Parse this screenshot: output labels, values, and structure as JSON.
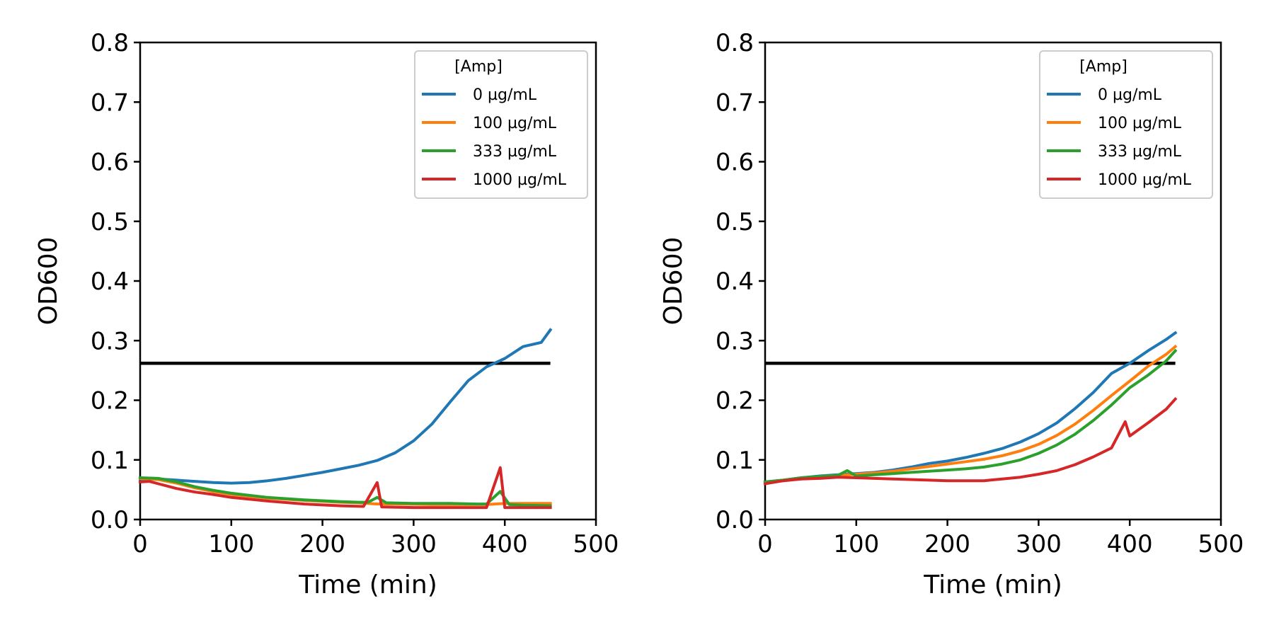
{
  "chart_data": [
    {
      "type": "line",
      "xlabel": "Time (min)",
      "ylabel": "OD600",
      "xlim": [
        0,
        500
      ],
      "ylim": [
        0,
        0.8
      ],
      "xticks": [
        "0",
        "100",
        "200",
        "300",
        "400",
        "500"
      ],
      "yticks": [
        "0.0",
        "0.1",
        "0.2",
        "0.3",
        "0.4",
        "0.5",
        "0.6",
        "0.7",
        "0.8"
      ],
      "grid": false,
      "legend_position": "top-right",
      "legend_title": "[Amp]",
      "threshold": {
        "y": 0.262,
        "x_start": 0,
        "x_end": 450,
        "color": "#000000"
      },
      "series": [
        {
          "name": "0 µg/mL",
          "color": "#1f77b4",
          "x": [
            0,
            20,
            40,
            60,
            80,
            100,
            120,
            140,
            160,
            180,
            200,
            220,
            240,
            260,
            280,
            300,
            320,
            340,
            360,
            380,
            400,
            420,
            440,
            450
          ],
          "y": [
            0.068,
            0.068,
            0.066,
            0.064,
            0.062,
            0.061,
            0.062,
            0.065,
            0.069,
            0.074,
            0.079,
            0.085,
            0.091,
            0.099,
            0.112,
            0.132,
            0.16,
            0.197,
            0.233,
            0.256,
            0.27,
            0.29,
            0.297,
            0.318
          ]
        },
        {
          "name": "100 µg/mL",
          "color": "#ff7f0e",
          "x": [
            0,
            20,
            40,
            60,
            80,
            100,
            140,
            180,
            220,
            240,
            260,
            280,
            320,
            360,
            380,
            400,
            420,
            450
          ],
          "y": [
            0.069,
            0.067,
            0.061,
            0.053,
            0.047,
            0.042,
            0.036,
            0.032,
            0.029,
            0.028,
            0.026,
            0.026,
            0.025,
            0.025,
            0.025,
            0.027,
            0.027,
            0.027
          ]
        },
        {
          "name": "333 µg/mL",
          "color": "#2ca02c",
          "x": [
            0,
            20,
            40,
            60,
            80,
            100,
            140,
            180,
            220,
            240,
            250,
            260,
            270,
            300,
            340,
            370,
            380,
            395,
            405,
            420,
            450
          ],
          "y": [
            0.07,
            0.069,
            0.063,
            0.055,
            0.049,
            0.044,
            0.037,
            0.033,
            0.03,
            0.029,
            0.029,
            0.037,
            0.028,
            0.027,
            0.027,
            0.026,
            0.026,
            0.047,
            0.025,
            0.024,
            0.023
          ]
        },
        {
          "name": "1000 µg/mL",
          "color": "#d62728",
          "x": [
            0,
            10,
            20,
            40,
            60,
            80,
            100,
            140,
            180,
            220,
            245,
            260,
            265,
            300,
            340,
            380,
            395,
            400,
            420,
            450
          ],
          "y": [
            0.063,
            0.064,
            0.06,
            0.052,
            0.046,
            0.042,
            0.037,
            0.031,
            0.026,
            0.023,
            0.022,
            0.062,
            0.021,
            0.02,
            0.02,
            0.02,
            0.087,
            0.02,
            0.02,
            0.02
          ]
        }
      ]
    },
    {
      "type": "line",
      "xlabel": "Time (min)",
      "ylabel": "OD600",
      "xlim": [
        0,
        500
      ],
      "ylim": [
        0,
        0.8
      ],
      "xticks": [
        "0",
        "100",
        "200",
        "300",
        "400",
        "500"
      ],
      "yticks": [
        "0.0",
        "0.1",
        "0.2",
        "0.3",
        "0.4",
        "0.5",
        "0.6",
        "0.7",
        "0.8"
      ],
      "grid": false,
      "legend_position": "top-right",
      "legend_title": "[Amp]",
      "threshold": {
        "y": 0.262,
        "x_start": 0,
        "x_end": 450,
        "color": "#000000"
      },
      "series": [
        {
          "name": "0 µg/mL",
          "color": "#1f77b4",
          "x": [
            0,
            20,
            40,
            60,
            80,
            100,
            120,
            140,
            160,
            180,
            200,
            220,
            240,
            260,
            280,
            300,
            320,
            340,
            360,
            380,
            400,
            420,
            440,
            450
          ],
          "y": [
            0.063,
            0.066,
            0.07,
            0.073,
            0.075,
            0.077,
            0.079,
            0.083,
            0.088,
            0.094,
            0.098,
            0.104,
            0.111,
            0.119,
            0.13,
            0.144,
            0.162,
            0.186,
            0.213,
            0.245,
            0.262,
            0.283,
            0.302,
            0.313
          ]
        },
        {
          "name": "100 µg/mL",
          "color": "#ff7f0e",
          "x": [
            0,
            20,
            40,
            60,
            80,
            100,
            120,
            140,
            160,
            180,
            200,
            220,
            240,
            260,
            280,
            300,
            320,
            340,
            360,
            380,
            400,
            420,
            440,
            450
          ],
          "y": [
            0.062,
            0.065,
            0.069,
            0.072,
            0.074,
            0.076,
            0.078,
            0.081,
            0.085,
            0.089,
            0.093,
            0.097,
            0.101,
            0.107,
            0.115,
            0.126,
            0.141,
            0.16,
            0.183,
            0.208,
            0.232,
            0.257,
            0.277,
            0.29
          ]
        },
        {
          "name": "333 µg/mL",
          "color": "#2ca02c",
          "x": [
            0,
            20,
            40,
            60,
            80,
            90,
            100,
            120,
            140,
            160,
            180,
            200,
            220,
            240,
            260,
            280,
            300,
            320,
            340,
            360,
            380,
            400,
            420,
            440,
            450
          ],
          "y": [
            0.063,
            0.066,
            0.07,
            0.072,
            0.074,
            0.082,
            0.073,
            0.075,
            0.077,
            0.079,
            0.081,
            0.083,
            0.085,
            0.088,
            0.093,
            0.1,
            0.111,
            0.125,
            0.143,
            0.166,
            0.192,
            0.221,
            0.242,
            0.266,
            0.283
          ]
        },
        {
          "name": "1000 µg/mL",
          "color": "#d62728",
          "x": [
            0,
            20,
            40,
            60,
            80,
            100,
            140,
            180,
            200,
            240,
            260,
            280,
            300,
            320,
            340,
            360,
            380,
            395,
            400,
            420,
            440,
            450
          ],
          "y": [
            0.06,
            0.065,
            0.068,
            0.069,
            0.071,
            0.07,
            0.068,
            0.066,
            0.065,
            0.065,
            0.068,
            0.071,
            0.076,
            0.082,
            0.092,
            0.105,
            0.12,
            0.164,
            0.14,
            0.162,
            0.185,
            0.202
          ]
        }
      ]
    }
  ]
}
